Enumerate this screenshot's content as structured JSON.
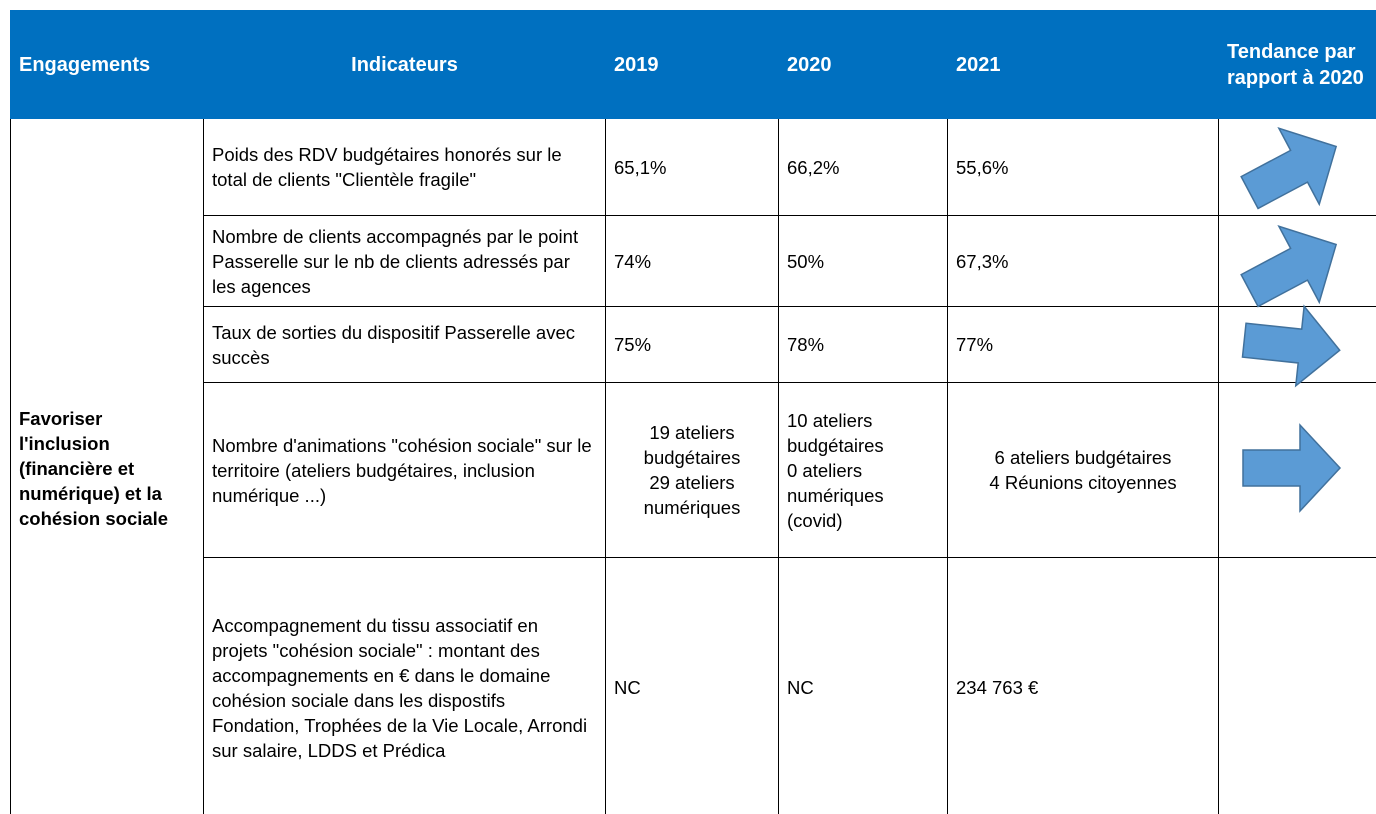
{
  "table": {
    "header": [
      "Engagements",
      "Indicateurs",
      "2019",
      "2020",
      "2021",
      "Tendance par rapport à 2020"
    ],
    "engagement": "Favoriser l'inclusion (financière et numérique) et la cohésion sociale",
    "rows": [
      {
        "indicator": "Poids des RDV budgétaires honorés sur le total de clients \"Clientèle fragile\"",
        "y2019": [
          "65,1%"
        ],
        "y2020": [
          "66,2%"
        ],
        "y2021": [
          "55,6%"
        ]
      },
      {
        "indicator": "Nombre de clients accompagnés par le point Passerelle sur le nb de clients adressés par les agences",
        "y2019": [
          "74%"
        ],
        "y2020": [
          "50%"
        ],
        "y2021": [
          "67,3%"
        ]
      },
      {
        "indicator": "Taux de sorties du dispositif Passerelle avec succès",
        "y2019": [
          "75%"
        ],
        "y2020": [
          "78%"
        ],
        "y2021": [
          "77%"
        ]
      },
      {
        "indicator": "Nombre d'animations \"cohésion sociale\" sur le territoire (ateliers budgétaires, inclusion numérique ...)",
        "y2019": [
          "19 ateliers",
          "budgétaires",
          "29 ateliers",
          "numériques"
        ],
        "y2020": [
          "10 ateliers",
          "budgétaires",
          "0 ateliers",
          "numériques",
          "(covid)"
        ],
        "y2021": [
          "6 ateliers budgétaires",
          "4 Réunions citoyennes"
        ]
      },
      {
        "indicator": "Accompagnement du tissu associatif en projets \"cohésion sociale\" : montant des accompagnements en € dans le domaine cohésion sociale dans les dispostifs Fondation, Trophées de la Vie Locale, Arrondi sur salaire, LDDS et Prédica",
        "y2019": [
          "NC"
        ],
        "y2020": [
          "NC"
        ],
        "y2021": [
          "234 763 €"
        ]
      }
    ]
  }
}
